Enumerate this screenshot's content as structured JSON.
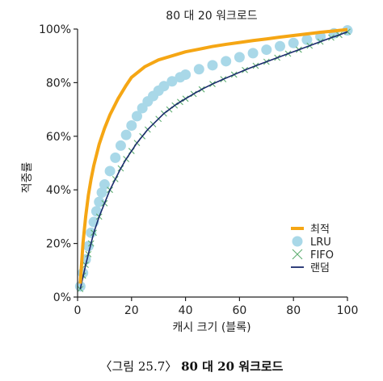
{
  "chart_data": {
    "type": "line",
    "title": "80 대 20 워크로드",
    "xlabel": "캐시 크기 (블록)",
    "ylabel": "적중률",
    "xlim": [
      0,
      100
    ],
    "ylim": [
      0,
      100
    ],
    "x_ticks": [
      "0",
      "20",
      "40",
      "60",
      "80",
      "100"
    ],
    "y_ticks": [
      "0%",
      "20%",
      "40%",
      "60%",
      "80%",
      "100%"
    ],
    "grid": false,
    "legend_position": "bottom-right",
    "series": [
      {
        "name": "최적",
        "style": "line",
        "color": "#f5a614",
        "x": [
          1,
          2,
          3,
          4,
          5,
          6,
          8,
          10,
          12,
          15,
          18,
          20,
          25,
          30,
          35,
          40,
          45,
          50,
          55,
          60,
          65,
          70,
          75,
          80,
          85,
          90,
          95,
          100
        ],
        "y": [
          5,
          20,
          30,
          38,
          44,
          49,
          57,
          63,
          68,
          74,
          79,
          82,
          86,
          88.5,
          90,
          91.5,
          92.5,
          93.5,
          94.3,
          95,
          95.7,
          96.3,
          97,
          97.6,
          98.2,
          98.8,
          99.3,
          99.8
        ]
      },
      {
        "name": "LRU",
        "style": "circle",
        "color": "#a9d8e8",
        "x": [
          1,
          2,
          3,
          4,
          5,
          6,
          7,
          8,
          9,
          10,
          12,
          14,
          16,
          18,
          20,
          22,
          24,
          26,
          28,
          30,
          32,
          35,
          38,
          40,
          45,
          50,
          55,
          60,
          65,
          70,
          75,
          80,
          85,
          90,
          95,
          100
        ],
        "y": [
          4,
          9,
          14,
          19,
          24,
          28,
          32,
          35.5,
          39,
          42,
          47,
          52,
          56.5,
          60.5,
          64,
          67.5,
          70.5,
          73,
          75,
          77,
          78.7,
          80.5,
          82,
          83,
          85,
          86.5,
          88,
          89.5,
          91,
          92.3,
          93.6,
          94.8,
          96,
          97.2,
          98.4,
          99.5
        ]
      },
      {
        "name": "FIFO",
        "style": "cross",
        "color": "#5fae72",
        "x": [
          1,
          2,
          3,
          4,
          5,
          6,
          8,
          10,
          12,
          14,
          16,
          18,
          20,
          22,
          24,
          26,
          28,
          30,
          32,
          34,
          36,
          38,
          40,
          43,
          46,
          50,
          54,
          58,
          62,
          66,
          70,
          74,
          78,
          82,
          86,
          90,
          94,
          97,
          100
        ],
        "y": [
          3,
          8,
          12,
          16,
          20,
          24,
          30,
          35,
          40,
          44,
          48,
          51.5,
          54.5,
          57.5,
          60,
          62.5,
          64.5,
          66.5,
          68.5,
          70,
          71.5,
          72.8,
          74,
          75.8,
          77.5,
          79.5,
          81.3,
          83,
          84.7,
          86.3,
          87.8,
          89.3,
          90.8,
          92.3,
          93.8,
          95.3,
          96.8,
          97.8,
          99
        ]
      },
      {
        "name": "랜덤",
        "style": "line",
        "color": "#1a2a6c",
        "x": [
          1,
          2,
          3,
          4,
          5,
          6,
          8,
          10,
          12,
          14,
          16,
          18,
          20,
          22,
          24,
          26,
          28,
          30,
          32,
          34,
          36,
          38,
          40,
          43,
          46,
          50,
          54,
          58,
          62,
          66,
          70,
          74,
          78,
          82,
          86,
          90,
          94,
          97,
          100
        ],
        "y": [
          3,
          7.5,
          12,
          16,
          20,
          24,
          30,
          35,
          40,
          44,
          48,
          51.5,
          54.5,
          57.5,
          60,
          62.5,
          64.5,
          66.5,
          68.5,
          70,
          71.5,
          72.8,
          74,
          75.8,
          77.5,
          79.5,
          81.3,
          83,
          84.7,
          86.3,
          87.8,
          89.3,
          90.8,
          92.3,
          93.8,
          95.3,
          96.8,
          97.8,
          99
        ]
      }
    ]
  },
  "caption": {
    "prefix": "〈그림 25.7〉",
    "text": "80 대 20 워크로드"
  }
}
